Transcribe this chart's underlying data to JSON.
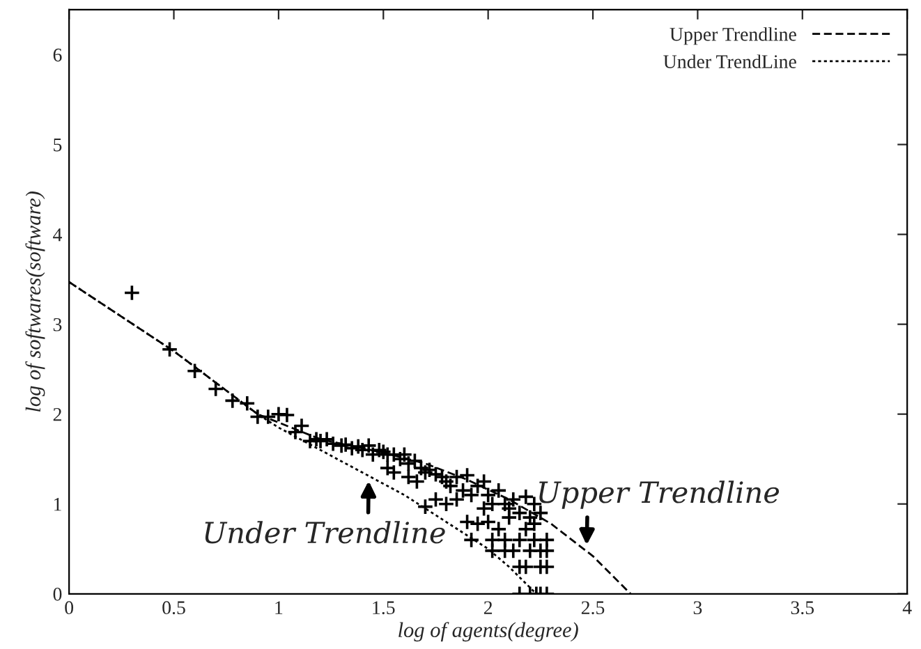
{
  "chart_data": {
    "type": "scatter",
    "xlabel": "log of agents(degree)",
    "ylabel": "log of softwares(software)",
    "xlim": [
      0,
      4
    ],
    "ylim": [
      0,
      6.5
    ],
    "xticks": [
      0,
      0.5,
      1,
      1.5,
      2,
      2.5,
      3,
      3.5,
      4
    ],
    "yticks": [
      0,
      1,
      2,
      3,
      4,
      5,
      6
    ],
    "grid": false,
    "legend": "top right",
    "series": [
      {
        "color": "#000000",
        "marker": "cross",
        "x": [
          0.3,
          0.48,
          0.6,
          0.7,
          0.78,
          0.85,
          0.9,
          0.95,
          1.0,
          1.04,
          1.08,
          1.11,
          1.15,
          1.18,
          1.2,
          1.23,
          1.26,
          1.3,
          1.32,
          1.35,
          1.38,
          1.4,
          1.43,
          1.45,
          1.48,
          1.5,
          1.52,
          1.55,
          1.58,
          1.6,
          1.62,
          1.65,
          1.68,
          1.7,
          1.72,
          1.75,
          1.78,
          1.8,
          1.82,
          1.85,
          1.88,
          1.9,
          1.92,
          1.95,
          1.98,
          2.0,
          2.02,
          2.05,
          2.08,
          2.1,
          2.12,
          2.15,
          2.18,
          2.2,
          2.22,
          2.25,
          1.52,
          1.55,
          1.62,
          1.66,
          1.7,
          1.75,
          1.8,
          1.85,
          1.9,
          1.92,
          1.95,
          1.98,
          2.0,
          2.02,
          2.05,
          2.08,
          2.1,
          2.12,
          2.15,
          2.18,
          2.2,
          2.22,
          2.25,
          2.28,
          2.02,
          2.08,
          2.15,
          2.18,
          2.25,
          2.28,
          2.22,
          2.28,
          2.15,
          2.2,
          2.23,
          2.25,
          2.28
        ],
        "values": [
          3.35,
          2.72,
          2.48,
          2.28,
          2.15,
          2.12,
          1.97,
          1.97,
          2.0,
          1.99,
          1.8,
          1.87,
          1.7,
          1.72,
          1.7,
          1.72,
          1.67,
          1.65,
          1.66,
          1.62,
          1.64,
          1.6,
          1.65,
          1.55,
          1.6,
          1.58,
          1.55,
          1.55,
          1.5,
          1.55,
          1.45,
          1.48,
          1.4,
          1.35,
          1.38,
          1.33,
          1.3,
          1.25,
          1.2,
          1.3,
          1.15,
          1.32,
          1.1,
          1.2,
          1.25,
          1.1,
          1.0,
          1.15,
          1.0,
          0.95,
          1.05,
          0.9,
          1.08,
          0.85,
          1.0,
          0.9,
          1.4,
          1.35,
          1.3,
          1.25,
          0.97,
          1.05,
          1.0,
          1.05,
          0.8,
          0.6,
          0.78,
          0.95,
          0.8,
          0.6,
          0.72,
          0.6,
          0.85,
          0.48,
          0.6,
          0.72,
          0.48,
          0.6,
          0.48,
          0.6,
          0.48,
          0.48,
          0.3,
          0.3,
          0.3,
          0.3,
          0.78,
          0.48,
          0,
          0,
          0,
          0,
          0
        ]
      },
      {
        "type": "line",
        "name": "Upper Trendline",
        "color": "#000000",
        "line_style": "dashed",
        "x": [
          0,
          0.5,
          0.9,
          1.2,
          1.5,
          1.7,
          1.9,
          2.1,
          2.3,
          2.5,
          2.68
        ],
        "values": [
          3.47,
          2.7,
          2.0,
          1.72,
          1.57,
          1.45,
          1.27,
          1.05,
          0.78,
          0.42,
          0
        ]
      },
      {
        "type": "line",
        "name": "Under TrendLine",
        "color": "#000000",
        "line_style": "dotted",
        "x": [
          0,
          0.5,
          0.9,
          1.0,
          1.2,
          1.4,
          1.6,
          1.8,
          2.0,
          2.1,
          2.23
        ],
        "values": [
          3.47,
          2.7,
          2.0,
          1.85,
          1.6,
          1.35,
          1.1,
          0.8,
          0.5,
          0.3,
          0
        ]
      }
    ],
    "annotations": [
      {
        "text": "Under Trendline",
        "x": 1.43,
        "y": 1.3
      },
      {
        "text": "Upper Trendline",
        "x": 2.47,
        "y": 0.5
      }
    ]
  }
}
